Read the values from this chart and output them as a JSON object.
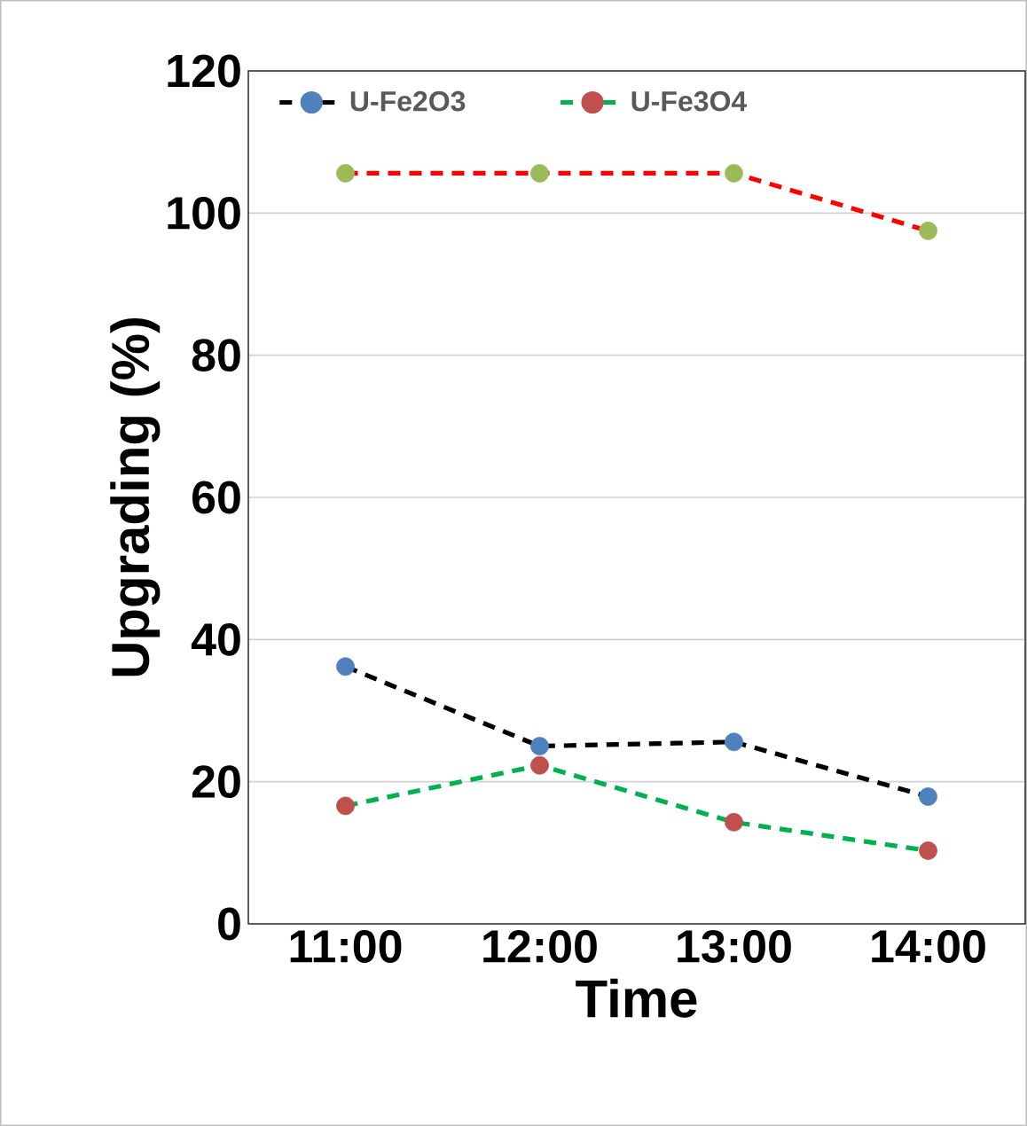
{
  "chart_data": {
    "type": "line",
    "xlabel": "Time",
    "ylabel": "Upgrading (%)",
    "categories": [
      "11:00",
      "12:00",
      "13:00",
      "14:00"
    ],
    "series": [
      {
        "name": "U-Fe2O3",
        "color": "#000000",
        "colors": [
          "#4f81bd",
          "#4f81bd",
          "#4f81bd",
          "#4f81bd"
        ],
        "values": [
          36.2,
          25.0,
          25.6,
          17.9
        ]
      },
      {
        "name": "U-Fe3O4",
        "color": "#00b050",
        "colors": [
          "#c0504d",
          "#c0504d",
          "#c0504d",
          "#c0504d"
        ],
        "values": [
          16.6,
          22.3,
          14.3,
          10.3
        ]
      },
      {
        "color": "#ff0000",
        "colors": [
          "#9bbb59",
          "#9bbb59",
          "#9bbb59",
          "#9bbb59"
        ],
        "values": [
          105.6,
          105.6,
          105.6,
          97.5
        ]
      }
    ],
    "ylim": [
      0,
      120
    ],
    "yticks": [
      0,
      20,
      40,
      60,
      80,
      100,
      120
    ],
    "grid": "y",
    "legend": "top",
    "marker": "circle",
    "line_style": "dashed"
  }
}
